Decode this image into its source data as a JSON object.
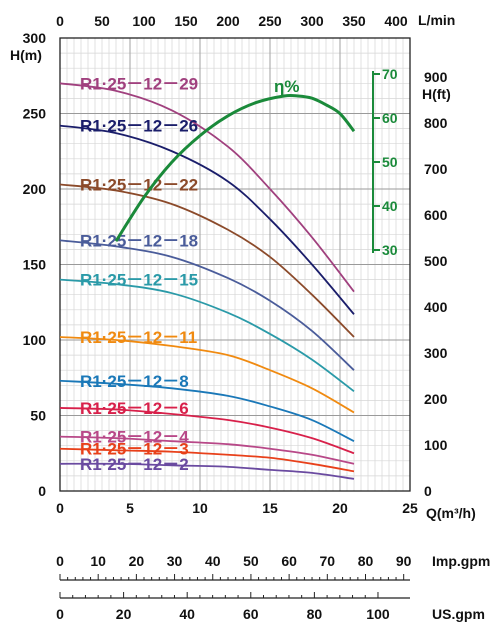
{
  "chart_data": {
    "type": "line",
    "axes": {
      "x_bottom": {
        "label": "Q(m³/h)",
        "range": [
          0,
          25
        ],
        "ticks": [
          0,
          5,
          10,
          15,
          20,
          25
        ]
      },
      "x_top": {
        "label": "L/min",
        "ticks": [
          0,
          50,
          100,
          150,
          200,
          250,
          300,
          350,
          400
        ]
      },
      "y_left": {
        "label": "H(m)",
        "range": [
          0,
          300
        ],
        "ticks": [
          0,
          50,
          100,
          150,
          200,
          250,
          300
        ]
      },
      "y_right": {
        "label": "H(ft)",
        "ticks": [
          0,
          100,
          200,
          300,
          400,
          500,
          600,
          700,
          800,
          900
        ]
      },
      "efficiency": {
        "label": "η%",
        "ticks": [
          30,
          40,
          50,
          60,
          70
        ]
      },
      "imp_gpm": {
        "label": "Imp.gpm",
        "ticks": [
          0,
          10,
          20,
          30,
          40,
          50,
          60,
          70,
          80,
          90
        ]
      },
      "us_gpm": {
        "label": "US.gpm",
        "ticks": [
          0,
          20,
          40,
          60,
          80,
          100
        ]
      }
    },
    "grid": true,
    "series": [
      {
        "name": "R1·25－12－29",
        "color": "#a0407e",
        "x": [
          0,
          4,
          8,
          12,
          15,
          18,
          21
        ],
        "y": [
          270,
          265,
          252,
          228,
          200,
          168,
          132
        ]
      },
      {
        "name": "R1·25－12－26",
        "color": "#1a1d6a",
        "x": [
          0,
          4,
          8,
          12,
          15,
          18,
          21
        ],
        "y": [
          242,
          237,
          225,
          205,
          180,
          150,
          117
        ]
      },
      {
        "name": "R1·25－12－22",
        "color": "#8b4a2a",
        "x": [
          0,
          4,
          8,
          12,
          15,
          18,
          21
        ],
        "y": [
          203,
          199,
          190,
          173,
          155,
          130,
          102
        ]
      },
      {
        "name": "R1·25－12－18",
        "color": "#4a5c9a",
        "x": [
          0,
          4,
          8,
          12,
          15,
          18,
          21
        ],
        "y": [
          166,
          162,
          155,
          141,
          126,
          106,
          80
        ]
      },
      {
        "name": "R1·25－12－15",
        "color": "#2a9aa8",
        "x": [
          0,
          4,
          8,
          12,
          15,
          18,
          21
        ],
        "y": [
          140,
          137,
          131,
          118,
          104,
          87,
          66
        ]
      },
      {
        "name": "R1·25－12－11",
        "color": "#f08a10",
        "x": [
          0,
          4,
          8,
          12,
          15,
          18,
          21
        ],
        "y": [
          102,
          100,
          96,
          90,
          80,
          68,
          52
        ]
      },
      {
        "name": "R1·25－12－8",
        "color": "#1a78b8",
        "x": [
          0,
          4,
          8,
          12,
          15,
          18,
          21
        ],
        "y": [
          73,
          71,
          68,
          63,
          56,
          47,
          33
        ]
      },
      {
        "name": "R1·25－12－6",
        "color": "#d8204a",
        "x": [
          0,
          4,
          8,
          12,
          15,
          18,
          21
        ],
        "y": [
          55,
          54,
          51,
          47,
          42,
          35,
          25
        ]
      },
      {
        "name": "R1·25－12－4",
        "color": "#b84888",
        "x": [
          0,
          4,
          8,
          12,
          15,
          18,
          21
        ],
        "y": [
          36,
          35,
          33,
          31,
          28,
          24,
          18
        ]
      },
      {
        "name": "R1·25－12－3",
        "color": "#e8401a",
        "x": [
          0,
          4,
          8,
          12,
          15,
          18,
          21
        ],
        "y": [
          28,
          27,
          26,
          24,
          22,
          18,
          13
        ]
      },
      {
        "name": "R1·25－12－2",
        "color": "#6a4aa0",
        "x": [
          0,
          4,
          8,
          12,
          15,
          18,
          21
        ],
        "y": [
          18,
          18,
          17,
          16,
          14,
          12,
          8
        ]
      }
    ],
    "efficiency_curve": {
      "name": "η%",
      "color": "#1a8a3a",
      "x": [
        4,
        6,
        8,
        10,
        12,
        14,
        16,
        17,
        18,
        19,
        20,
        21
      ],
      "y": [
        32,
        42,
        50,
        56,
        60.5,
        63.5,
        65,
        65,
        64.5,
        63,
        61,
        57
      ]
    }
  }
}
